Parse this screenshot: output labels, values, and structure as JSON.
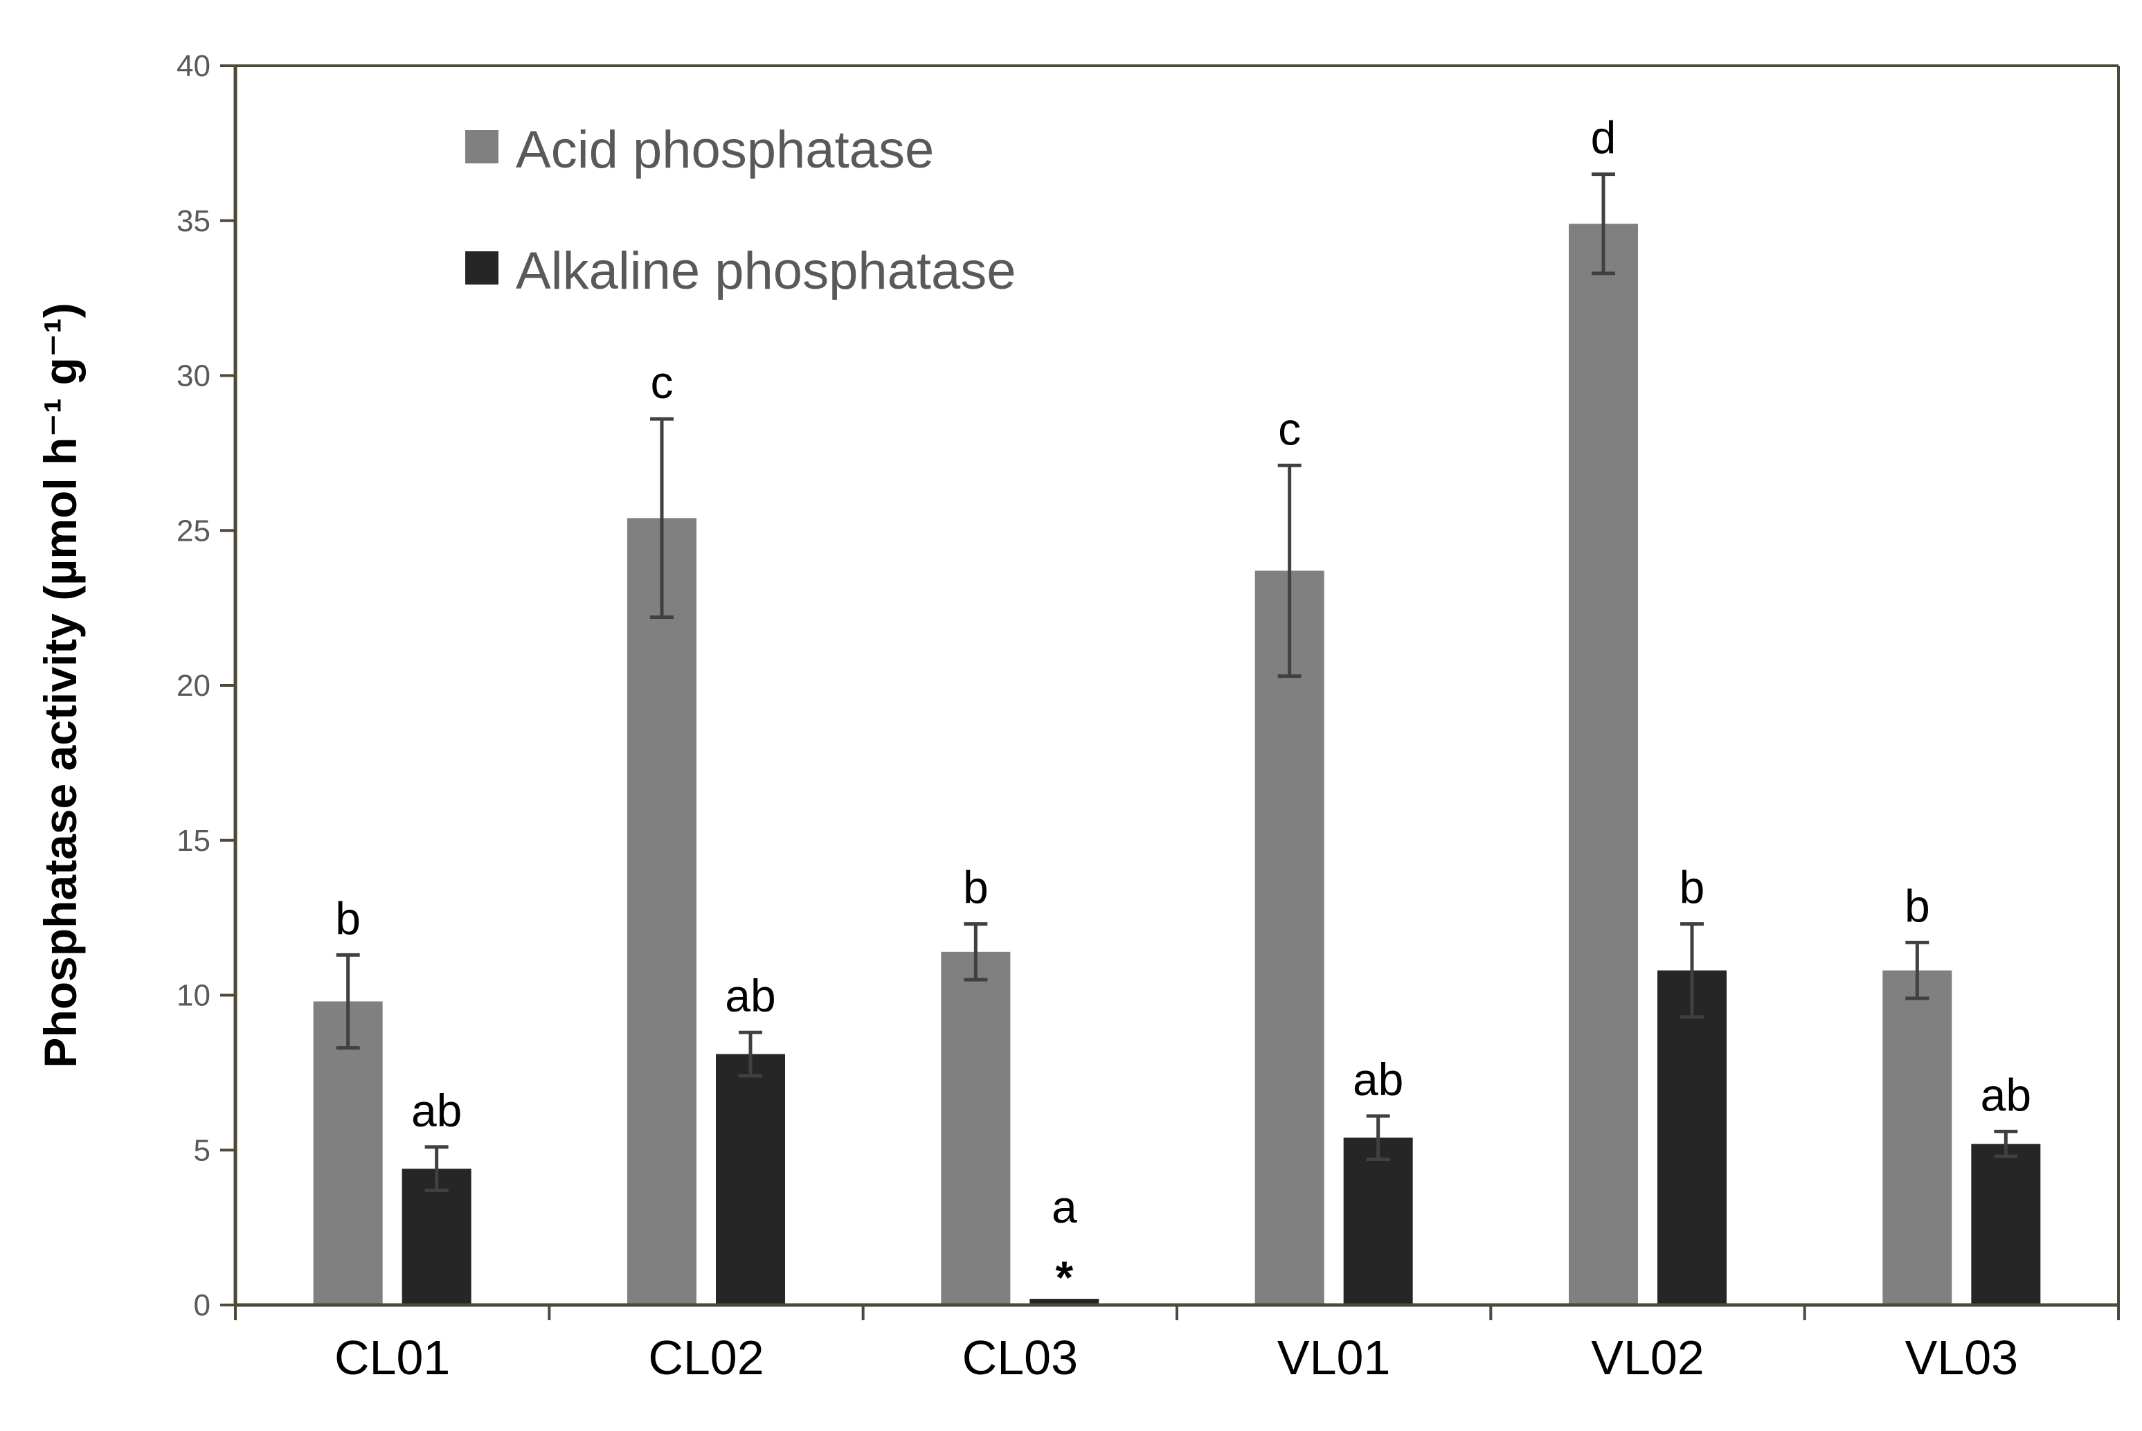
{
  "chart_data": {
    "type": "bar",
    "title": "",
    "xlabel": "",
    "ylabel": "Phosphatase activity (µmol h⁻¹ g⁻¹)",
    "ylim": [
      0,
      40
    ],
    "yticks": [
      0,
      5,
      10,
      15,
      20,
      25,
      30,
      35,
      40
    ],
    "categories": [
      "CL01",
      "CL02",
      "CL03",
      "VL01",
      "VL02",
      "VL03"
    ],
    "legend_position": "top-left",
    "grid": false,
    "series": [
      {
        "name": "Acid phosphatase",
        "color": "#808080",
        "values": [
          9.8,
          25.4,
          11.4,
          23.7,
          34.9,
          10.8
        ],
        "errors": [
          1.5,
          3.2,
          0.9,
          3.4,
          1.6,
          0.9
        ],
        "labels": [
          "b",
          "c",
          "b",
          "c",
          "d",
          "b"
        ]
      },
      {
        "name": "Alkaline phosphatase",
        "color": "#262626",
        "values": [
          4.4,
          8.1,
          0.2,
          5.4,
          10.8,
          5.2
        ],
        "errors": [
          0.7,
          0.7,
          0,
          0.7,
          1.5,
          0.4
        ],
        "labels": [
          "ab",
          "ab",
          "a",
          "ab",
          "b",
          "ab"
        ],
        "markers": [
          "",
          "",
          "*",
          "",
          "",
          ""
        ]
      }
    ]
  }
}
